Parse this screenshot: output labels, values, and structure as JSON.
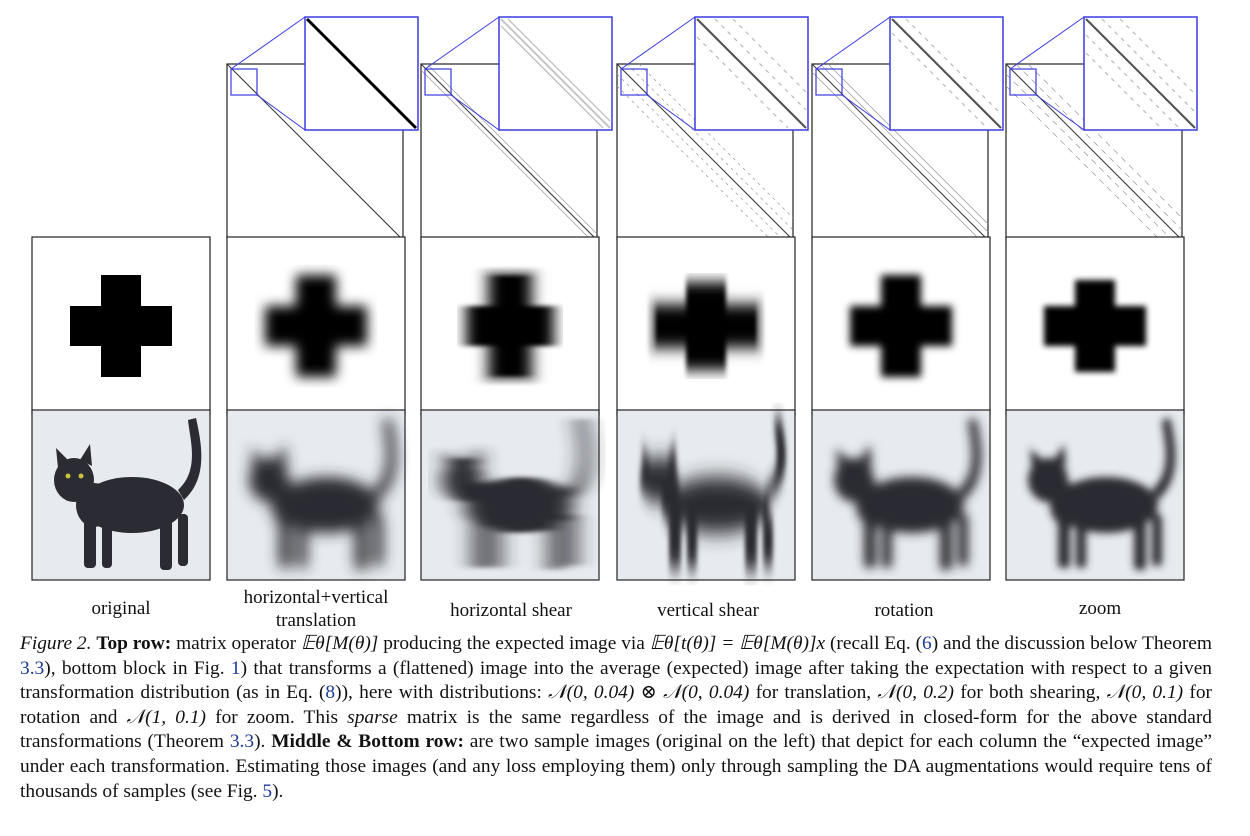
{
  "columns": [
    {
      "label": "original",
      "type": "original"
    },
    {
      "label": "horizontal+vertical translation",
      "type": "translation"
    },
    {
      "label": "horizontal shear",
      "type": "hshear"
    },
    {
      "label": "vertical shear",
      "type": "vshear"
    },
    {
      "label": "rotation",
      "type": "rotation"
    },
    {
      "label": "zoom",
      "type": "zoom"
    }
  ],
  "colors": {
    "zoom_box": "#3b3be0",
    "ink": "#000000",
    "cat": "#2a2b33",
    "photo_background": "#e7ebef"
  },
  "caption": {
    "figure_label": "Figure 2.",
    "top_row_label": "Top row:",
    "text_1": " matrix operator ",
    "formula_1": "𝔼θ[M(θ)]",
    "text_2": " producing the expected image via ",
    "formula_2": "𝔼θ[t(θ)] = 𝔼θ[M(θ)]x",
    "text_3": " (recall Eq. (",
    "ref_eq6": "6",
    "text_4": ") and the discussion below Theorem ",
    "ref_thm1": "3.3",
    "text_5": "), bottom block in Fig. ",
    "ref_fig1": "1",
    "text_6": ") that transforms a (flattened) image into the average (expected) image after taking the expectation with respect to a given transformation distribution (as in Eq. (",
    "ref_eq8": "8",
    "text_7": ")), here with distributions: ",
    "dist_translation": "𝒩(0, 0.04) ⊗ 𝒩(0, 0.04)",
    "text_8": " for translation, ",
    "dist_shear": "𝒩(0, 0.2)",
    "text_9": " for both shearing, ",
    "dist_rotation": "𝒩(0, 0.1)",
    "text_10": " for rotation and ",
    "dist_zoom": "𝒩(1, 0.1)",
    "text_11": " for zoom. This ",
    "sparse": "sparse",
    "text_12": " matrix is the same regardless of the image and is derived in closed-form for the above standard transformations (Theorem ",
    "ref_thm2": "3.3",
    "text_13": "). ",
    "middle_bottom_label": "Middle & Bottom row:",
    "text_14": " are two sample images (original on the left) that depict for each column the “expected image” under each transformation. Estimating those images (and any loss employing them) only through sampling the DA augmentations would require tens of thousands of samples (see Fig. ",
    "ref_fig5": "5",
    "text_15": ")."
  }
}
